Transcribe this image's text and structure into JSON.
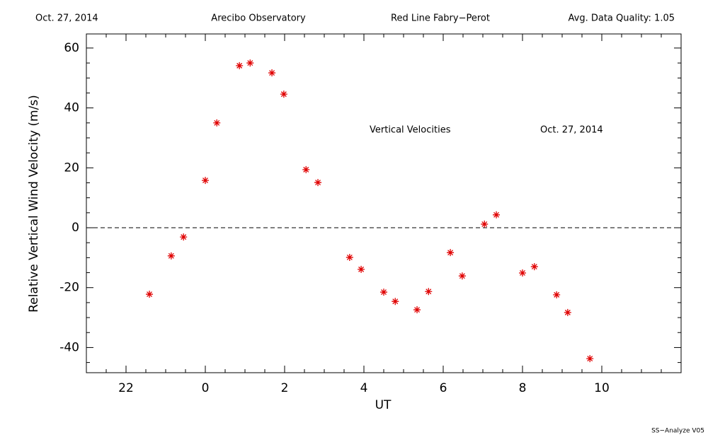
{
  "header": {
    "date": "Oct. 27, 2014",
    "site": "Arecibo Observatory",
    "instrument": "Red Line Fabry−Perot",
    "quality": "Avg. Data Quality: 1.05"
  },
  "footer": "SS−Analyze V05",
  "chart_data": {
    "type": "scatter",
    "annotations": [
      "Vertical Velocities",
      "Oct. 27, 2014"
    ],
    "x_label": "UT",
    "y_label": "Relative Vertical Wind Velocity (m/s)",
    "color": "#e00000",
    "x": [
      -1.41,
      -0.86,
      -0.55,
      0,
      0.29,
      0.86,
      1.13,
      1.68,
      1.98,
      2.54,
      2.84,
      3.64,
      3.93,
      4.5,
      4.79,
      5.34,
      5.63,
      6.18,
      6.48,
      7.04,
      7.34,
      8.0,
      8.3,
      8.86,
      9.14,
      9.7
    ],
    "values": [
      -22.2,
      -9.4,
      -3.1,
      15.8,
      35.0,
      54.1,
      55.0,
      51.7,
      44.6,
      19.4,
      15.1,
      -9.9,
      -13.9,
      -21.5,
      -24.6,
      -27.4,
      -21.3,
      -8.3,
      -16.1,
      1.2,
      4.3,
      -15.1,
      -13.0,
      -22.4,
      -28.3,
      -43.7
    ],
    "xlim": [
      -3,
      12
    ],
    "ylim": [
      -48.4,
      64.7
    ],
    "xticks": [
      {
        "value": -2,
        "label": "22"
      },
      0,
      2,
      4,
      6,
      8,
      10
    ],
    "yticks": [
      -40,
      -20,
      0,
      20,
      40,
      60
    ],
    "xminorticks": [
      -2.5,
      -1.5,
      -1,
      -0.5,
      0.5,
      1,
      1.5,
      2.5,
      3,
      3.5,
      4.5,
      5,
      5.5,
      6.5,
      7,
      7.5,
      8.5,
      9,
      9.5,
      10.5,
      11,
      11.5
    ],
    "yminorticks": [
      -45,
      -35,
      -30,
      -25,
      -15,
      -10,
      -5,
      5,
      10,
      15,
      25,
      30,
      35,
      45,
      50,
      55
    ],
    "hline": 0
  }
}
